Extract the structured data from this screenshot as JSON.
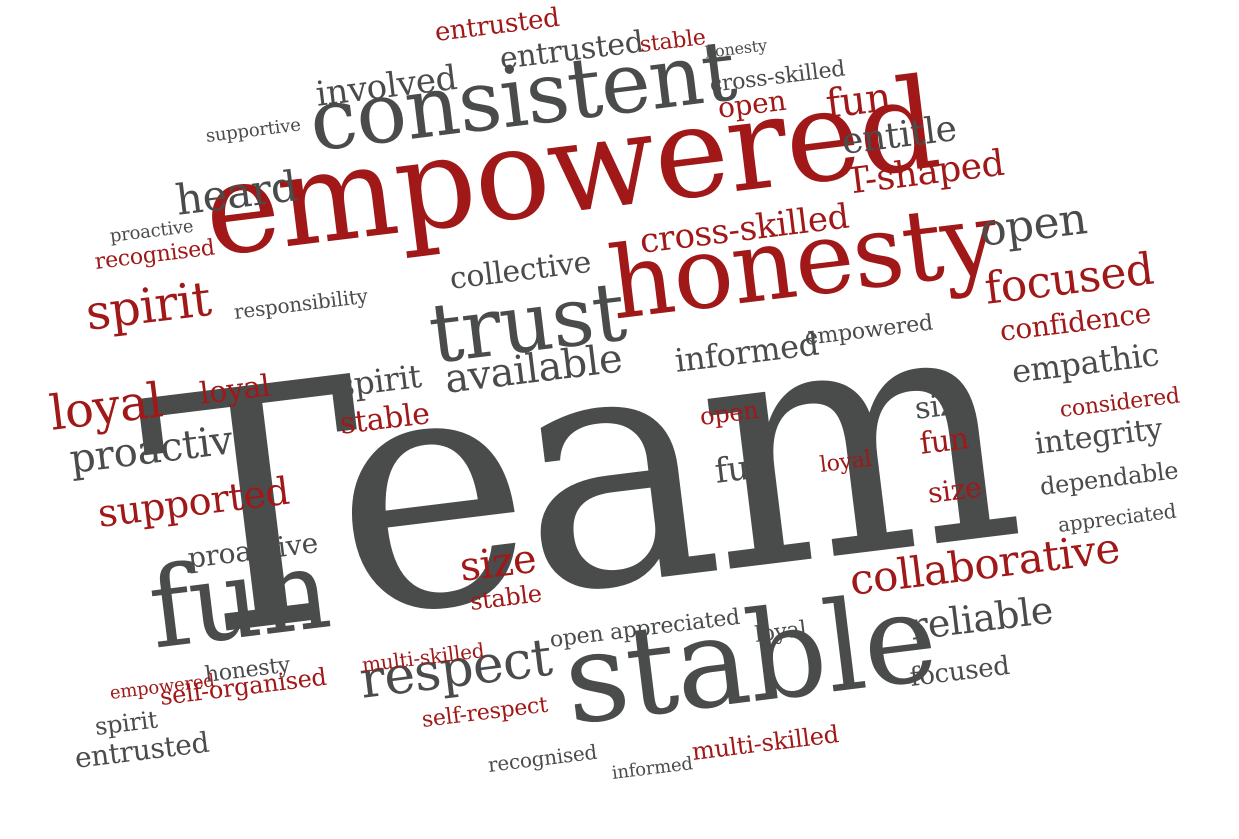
{
  "colors": {
    "dark": "#4a4b4b",
    "red": "#a01818"
  },
  "cloud": {
    "hero": "Team",
    "big_words": {
      "empowered": "empowered",
      "consistent": "consistent",
      "honesty": "honesty",
      "stable": "stable",
      "trust": "trust",
      "fun": "fun"
    },
    "words": [
      {
        "text": "entrusted",
        "c": "red"
      },
      {
        "text": "involved",
        "c": "dark"
      },
      {
        "text": "entrusted",
        "c": "dark"
      },
      {
        "text": "stable",
        "c": "red"
      },
      {
        "text": "honesty",
        "c": "dark"
      },
      {
        "text": "cross-skilled",
        "c": "dark"
      },
      {
        "text": "open",
        "c": "red"
      },
      {
        "text": "fun",
        "c": "red"
      },
      {
        "text": "entitle",
        "c": "dark"
      },
      {
        "text": "T-shaped",
        "c": "red"
      },
      {
        "text": "heard",
        "c": "dark"
      },
      {
        "text": "supportive",
        "c": "dark"
      },
      {
        "text": "proactive",
        "c": "dark"
      },
      {
        "text": "recognised",
        "c": "red"
      },
      {
        "text": "spirit",
        "c": "red"
      },
      {
        "text": "responsibility",
        "c": "dark"
      },
      {
        "text": "collective",
        "c": "dark"
      },
      {
        "text": "cross-skilled",
        "c": "red"
      },
      {
        "text": "open",
        "c": "dark"
      },
      {
        "text": "focused",
        "c": "red"
      },
      {
        "text": "confidence",
        "c": "red"
      },
      {
        "text": "empathic",
        "c": "dark"
      },
      {
        "text": "considered",
        "c": "red"
      },
      {
        "text": "integrity",
        "c": "dark"
      },
      {
        "text": "dependable",
        "c": "dark"
      },
      {
        "text": "appreciated",
        "c": "dark"
      },
      {
        "text": "collaborative",
        "c": "red"
      },
      {
        "text": "reliable",
        "c": "dark"
      },
      {
        "text": "focused",
        "c": "dark"
      },
      {
        "text": "loyal",
        "c": "red"
      },
      {
        "text": "loyal",
        "c": "red"
      },
      {
        "text": "proactive",
        "c": "dark"
      },
      {
        "text": "supported",
        "c": "red"
      },
      {
        "text": "proactive",
        "c": "dark"
      },
      {
        "text": "spirit",
        "c": "dark"
      },
      {
        "text": "stable",
        "c": "red"
      },
      {
        "text": "available",
        "c": "dark"
      },
      {
        "text": "informed",
        "c": "dark"
      },
      {
        "text": "empowered",
        "c": "dark"
      },
      {
        "text": "respect",
        "c": "dark"
      },
      {
        "text": "self-organised",
        "c": "red"
      },
      {
        "text": "self-respect",
        "c": "red"
      },
      {
        "text": "multi-skilled",
        "c": "red"
      },
      {
        "text": "multi-skilled",
        "c": "red"
      },
      {
        "text": "honesty",
        "c": "dark"
      },
      {
        "text": "empowered",
        "c": "red"
      },
      {
        "text": "entrusted",
        "c": "dark"
      },
      {
        "text": "size",
        "c": "red"
      },
      {
        "text": "stable",
        "c": "red"
      },
      {
        "text": "open appreciated",
        "c": "dark"
      },
      {
        "text": "loyal",
        "c": "dark"
      },
      {
        "text": "size",
        "c": "dark"
      },
      {
        "text": "size",
        "c": "red"
      },
      {
        "text": "fun",
        "c": "dark"
      },
      {
        "text": "fun",
        "c": "red"
      },
      {
        "text": "open",
        "c": "red"
      },
      {
        "text": "loyal",
        "c": "red"
      },
      {
        "text": "recognised",
        "c": "dark"
      },
      {
        "text": "informed",
        "c": "dark"
      },
      {
        "text": "spirit",
        "c": "dark"
      }
    ]
  }
}
